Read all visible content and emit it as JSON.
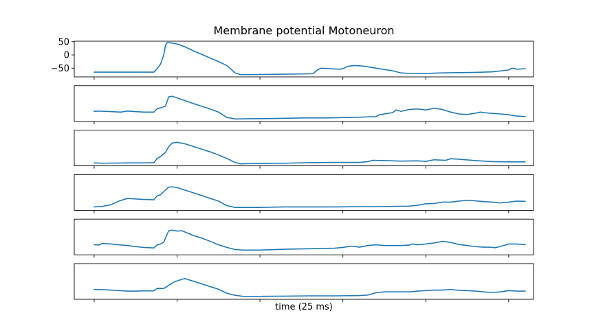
{
  "chart_data": {
    "type": "line",
    "title": "Membrane potential Motoneuron",
    "xlabel": "time (25 ms)",
    "ylabel": "",
    "xlim": [
      -12,
      265
    ],
    "ylim": [
      -83,
      52
    ],
    "x_ticks": [
      0,
      50,
      100,
      150,
      200,
      250
    ],
    "y_ticks": [
      50,
      0,
      -50
    ],
    "y_tick_labels": [
      "50",
      "0",
      "−50"
    ],
    "panels": [
      {
        "y_tick_labels_visible": true,
        "points": [
          [
            0,
            -65
          ],
          [
            10,
            -65
          ],
          [
            20,
            -65
          ],
          [
            30,
            -65
          ],
          [
            36,
            -65
          ],
          [
            38,
            -52
          ],
          [
            40,
            -35
          ],
          [
            42,
            0
          ],
          [
            43,
            36
          ],
          [
            44,
            47
          ],
          [
            47,
            45
          ],
          [
            51,
            40
          ],
          [
            55,
            30
          ],
          [
            60,
            15
          ],
          [
            65,
            2
          ],
          [
            70,
            -12
          ],
          [
            75,
            -25
          ],
          [
            80,
            -40
          ],
          [
            85,
            -68
          ],
          [
            88,
            -74
          ],
          [
            95,
            -74.5
          ],
          [
            110,
            -73
          ],
          [
            125,
            -72
          ],
          [
            132,
            -71
          ],
          [
            135,
            -55
          ],
          [
            137,
            -50
          ],
          [
            142,
            -52
          ],
          [
            148,
            -54
          ],
          [
            150,
            -52
          ],
          [
            153,
            -43
          ],
          [
            157,
            -40
          ],
          [
            162,
            -42
          ],
          [
            170,
            -50
          ],
          [
            180,
            -60
          ],
          [
            185,
            -68
          ],
          [
            190,
            -70
          ],
          [
            200,
            -70
          ],
          [
            210,
            -68
          ],
          [
            230,
            -66
          ],
          [
            240,
            -64
          ],
          [
            250,
            -57
          ],
          [
            252,
            -50
          ],
          [
            255,
            -54
          ],
          [
            260,
            -52
          ]
        ]
      },
      {
        "y_tick_labels_visible": false,
        "points": [
          [
            0,
            -45
          ],
          [
            3,
            -44
          ],
          [
            10,
            -46
          ],
          [
            16,
            -48
          ],
          [
            20,
            -44
          ],
          [
            25,
            -46
          ],
          [
            30,
            -48
          ],
          [
            36,
            -48
          ],
          [
            38,
            -35
          ],
          [
            40,
            -32
          ],
          [
            43,
            -25
          ],
          [
            45,
            10
          ],
          [
            47,
            12
          ],
          [
            50,
            6
          ],
          [
            55,
            -5
          ],
          [
            60,
            -16
          ],
          [
            65,
            -26
          ],
          [
            70,
            -36
          ],
          [
            75,
            -48
          ],
          [
            80,
            -68
          ],
          [
            85,
            -74
          ],
          [
            95,
            -73
          ],
          [
            110,
            -72
          ],
          [
            125,
            -70
          ],
          [
            140,
            -70
          ],
          [
            155,
            -68
          ],
          [
            170,
            -65
          ],
          [
            172,
            -58
          ],
          [
            180,
            -50
          ],
          [
            182,
            -40
          ],
          [
            185,
            -45
          ],
          [
            190,
            -38
          ],
          [
            195,
            -36
          ],
          [
            200,
            -40
          ],
          [
            205,
            -33
          ],
          [
            210,
            -38
          ],
          [
            215,
            -48
          ],
          [
            220,
            -55
          ],
          [
            225,
            -57
          ],
          [
            230,
            -52
          ],
          [
            233,
            -48
          ],
          [
            238,
            -52
          ],
          [
            245,
            -55
          ],
          [
            250,
            -58
          ],
          [
            255,
            -63
          ],
          [
            260,
            -65
          ]
        ]
      },
      {
        "y_tick_labels_visible": false,
        "points": [
          [
            0,
            -72
          ],
          [
            5,
            -73
          ],
          [
            20,
            -72
          ],
          [
            30,
            -72
          ],
          [
            36,
            -71
          ],
          [
            38,
            -55
          ],
          [
            40,
            -48
          ],
          [
            43,
            -32
          ],
          [
            45,
            -10
          ],
          [
            47,
            3
          ],
          [
            50,
            6
          ],
          [
            55,
            0
          ],
          [
            60,
            -10
          ],
          [
            65,
            -20
          ],
          [
            70,
            -30
          ],
          [
            75,
            -42
          ],
          [
            80,
            -55
          ],
          [
            85,
            -70
          ],
          [
            88,
            -75
          ],
          [
            100,
            -74
          ],
          [
            115,
            -73
          ],
          [
            130,
            -71
          ],
          [
            145,
            -70
          ],
          [
            160,
            -70
          ],
          [
            165,
            -67
          ],
          [
            168,
            -62
          ],
          [
            175,
            -63
          ],
          [
            185,
            -65
          ],
          [
            195,
            -64
          ],
          [
            200,
            -66
          ],
          [
            205,
            -60
          ],
          [
            212,
            -62
          ],
          [
            215,
            -56
          ],
          [
            220,
            -58
          ],
          [
            230,
            -63
          ],
          [
            240,
            -67
          ],
          [
            250,
            -68
          ],
          [
            260,
            -68
          ]
        ]
      },
      {
        "y_tick_labels_visible": false,
        "points": [
          [
            0,
            -70
          ],
          [
            5,
            -68
          ],
          [
            10,
            -62
          ],
          [
            15,
            -48
          ],
          [
            20,
            -38
          ],
          [
            25,
            -40
          ],
          [
            30,
            -42
          ],
          [
            36,
            -43
          ],
          [
            38,
            -28
          ],
          [
            40,
            -24
          ],
          [
            42,
            -12
          ],
          [
            45,
            5
          ],
          [
            47,
            6
          ],
          [
            50,
            3
          ],
          [
            55,
            -7
          ],
          [
            60,
            -17
          ],
          [
            65,
            -27
          ],
          [
            70,
            -38
          ],
          [
            75,
            -48
          ],
          [
            80,
            -65
          ],
          [
            85,
            -72
          ],
          [
            100,
            -72
          ],
          [
            115,
            -70
          ],
          [
            130,
            -70
          ],
          [
            145,
            -70
          ],
          [
            160,
            -69
          ],
          [
            170,
            -69
          ],
          [
            180,
            -68
          ],
          [
            190,
            -67
          ],
          [
            195,
            -64
          ],
          [
            200,
            -58
          ],
          [
            205,
            -57
          ],
          [
            210,
            -52
          ],
          [
            215,
            -52
          ],
          [
            220,
            -48
          ],
          [
            225,
            -45
          ],
          [
            230,
            -47
          ],
          [
            235,
            -50
          ],
          [
            240,
            -52
          ],
          [
            245,
            -55
          ],
          [
            250,
            -52
          ],
          [
            255,
            -48
          ],
          [
            260,
            -49
          ]
        ]
      },
      {
        "y_tick_labels_visible": false,
        "points": [
          [
            0,
            -45
          ],
          [
            3,
            -46
          ],
          [
            5,
            -40
          ],
          [
            10,
            -42
          ],
          [
            20,
            -48
          ],
          [
            25,
            -52
          ],
          [
            30,
            -55
          ],
          [
            36,
            -57
          ],
          [
            38,
            -45
          ],
          [
            40,
            -42
          ],
          [
            42,
            -35
          ],
          [
            44,
            -5
          ],
          [
            45,
            8
          ],
          [
            47,
            10
          ],
          [
            50,
            7
          ],
          [
            53,
            8
          ],
          [
            56,
            0
          ],
          [
            60,
            -10
          ],
          [
            65,
            -20
          ],
          [
            70,
            -32
          ],
          [
            75,
            -45
          ],
          [
            80,
            -55
          ],
          [
            85,
            -63
          ],
          [
            90,
            -65
          ],
          [
            100,
            -65
          ],
          [
            115,
            -62
          ],
          [
            130,
            -60
          ],
          [
            145,
            -58
          ],
          [
            150,
            -55
          ],
          [
            155,
            -50
          ],
          [
            160,
            -54
          ],
          [
            165,
            -48
          ],
          [
            170,
            -45
          ],
          [
            175,
            -48
          ],
          [
            185,
            -48
          ],
          [
            190,
            -46
          ],
          [
            192,
            -42
          ],
          [
            195,
            -45
          ],
          [
            200,
            -42
          ],
          [
            205,
            -38
          ],
          [
            210,
            -32
          ],
          [
            215,
            -36
          ],
          [
            220,
            -44
          ],
          [
            225,
            -48
          ],
          [
            230,
            -52
          ],
          [
            235,
            -54
          ],
          [
            238,
            -54
          ],
          [
            242,
            -56
          ],
          [
            247,
            -48
          ],
          [
            250,
            -42
          ],
          [
            255,
            -42
          ],
          [
            260,
            -45
          ]
        ]
      },
      {
        "y_tick_labels_visible": false,
        "points": [
          [
            0,
            -46
          ],
          [
            4,
            -46
          ],
          [
            10,
            -48
          ],
          [
            15,
            -50
          ],
          [
            20,
            -52
          ],
          [
            25,
            -52
          ],
          [
            30,
            -51
          ],
          [
            36,
            -51
          ],
          [
            38,
            -42
          ],
          [
            42,
            -42
          ],
          [
            45,
            -30
          ],
          [
            48,
            -18
          ],
          [
            53,
            -7
          ],
          [
            55,
            -5
          ],
          [
            60,
            -15
          ],
          [
            65,
            -25
          ],
          [
            70,
            -35
          ],
          [
            75,
            -45
          ],
          [
            80,
            -60
          ],
          [
            85,
            -68
          ],
          [
            90,
            -72
          ],
          [
            100,
            -72
          ],
          [
            115,
            -71
          ],
          [
            130,
            -70
          ],
          [
            145,
            -70
          ],
          [
            160,
            -69
          ],
          [
            165,
            -67
          ],
          [
            170,
            -58
          ],
          [
            175,
            -55
          ],
          [
            180,
            -55
          ],
          [
            190,
            -55
          ],
          [
            195,
            -52
          ],
          [
            200,
            -50
          ],
          [
            205,
            -48
          ],
          [
            210,
            -48
          ],
          [
            215,
            -46
          ],
          [
            220,
            -49
          ],
          [
            225,
            -50
          ],
          [
            230,
            -52
          ],
          [
            235,
            -55
          ],
          [
            240,
            -57
          ],
          [
            245,
            -55
          ],
          [
            250,
            -50
          ],
          [
            255,
            -52
          ],
          [
            260,
            -52
          ]
        ]
      }
    ]
  }
}
